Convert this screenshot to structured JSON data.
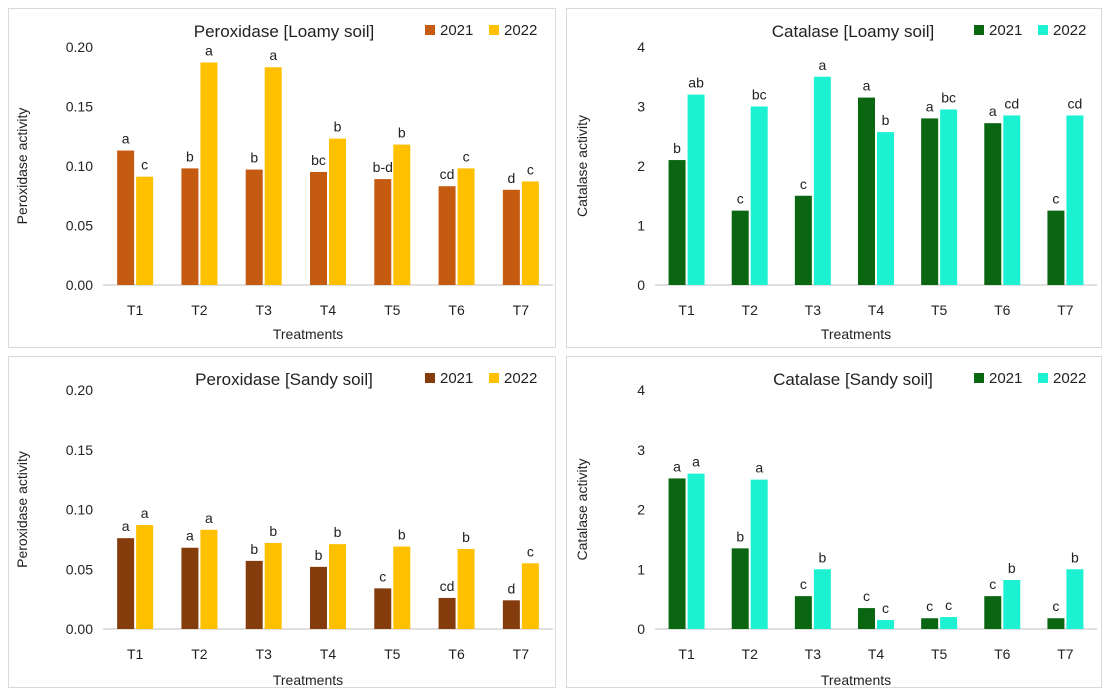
{
  "chart_data": [
    {
      "type": "bar",
      "title": "Peroxidase [Loamy soil]",
      "xlabel": "Treatments",
      "ylabel": "Peroxidase activity",
      "ylim": [
        0,
        0.2
      ],
      "yticks": [
        "0.00",
        "0.05",
        "0.10",
        "0.15",
        "0.20"
      ],
      "categories": [
        "T1",
        "T2",
        "T3",
        "T4",
        "T5",
        "T6",
        "T7"
      ],
      "series": [
        {
          "name": "2021",
          "color": "#C55A11",
          "values": [
            0.113,
            0.098,
            0.097,
            0.095,
            0.089,
            0.083,
            0.08
          ],
          "labels": [
            "a",
            "b",
            "b",
            "bc",
            "b-d",
            "cd",
            "d"
          ]
        },
        {
          "name": "2022",
          "color": "#FFC000",
          "values": [
            0.091,
            0.187,
            0.183,
            0.123,
            0.118,
            0.098,
            0.087
          ],
          "labels": [
            "c",
            "a",
            "a",
            "b",
            "b",
            "c",
            "c"
          ]
        }
      ],
      "legend": "top-right"
    },
    {
      "type": "bar",
      "title": "Catalase [Loamy soil]",
      "xlabel": "Treatments",
      "ylabel": "Catalase activity",
      "ylim": [
        0,
        4
      ],
      "yticks": [
        "0",
        "1",
        "2",
        "3",
        "4"
      ],
      "categories": [
        "T1",
        "T2",
        "T3",
        "T4",
        "T5",
        "T6",
        "T7"
      ],
      "series": [
        {
          "name": "2021",
          "color": "#0B6612",
          "values": [
            2.1,
            1.25,
            1.5,
            3.15,
            2.8,
            2.72,
            1.25
          ],
          "labels": [
            "b",
            "c",
            "c",
            "a",
            "a",
            "a",
            "c"
          ]
        },
        {
          "name": "2022",
          "color": "#1CF2D2",
          "values": [
            3.2,
            3.0,
            3.5,
            2.57,
            2.95,
            2.85,
            2.85
          ],
          "labels": [
            "ab",
            "bc",
            "a",
            "b",
            "bc",
            "cd",
            "cd"
          ]
        }
      ],
      "legend": "top-right"
    },
    {
      "type": "bar",
      "title": "Peroxidase [Sandy soil]",
      "xlabel": "Treatments",
      "ylabel": "Peroxidase activity",
      "ylim": [
        0,
        0.2
      ],
      "yticks": [
        "0.00",
        "0.05",
        "0.10",
        "0.15",
        "0.20"
      ],
      "categories": [
        "T1",
        "T2",
        "T3",
        "T4",
        "T5",
        "T6",
        "T7"
      ],
      "series": [
        {
          "name": "2021",
          "color": "#843C0C",
          "values": [
            0.076,
            0.068,
            0.057,
            0.052,
            0.034,
            0.026,
            0.024
          ],
          "labels": [
            "a",
            "a",
            "b",
            "b",
            "c",
            "cd",
            "d"
          ]
        },
        {
          "name": "2022",
          "color": "#FFC000",
          "values": [
            0.087,
            0.083,
            0.072,
            0.071,
            0.069,
            0.067,
            0.055
          ],
          "labels": [
            "a",
            "a",
            "b",
            "b",
            "b",
            "b",
            "c"
          ]
        }
      ],
      "legend": "top-right"
    },
    {
      "type": "bar",
      "title": "Catalase [Sandy soil]",
      "xlabel": "Treatments",
      "ylabel": "Catalase activity",
      "ylim": [
        0,
        4
      ],
      "yticks": [
        "0",
        "1",
        "2",
        "3",
        "4"
      ],
      "categories": [
        "T1",
        "T2",
        "T3",
        "T4",
        "T5",
        "T6",
        "T7"
      ],
      "series": [
        {
          "name": "2021",
          "color": "#0B6612",
          "values": [
            2.52,
            1.35,
            0.55,
            0.35,
            0.18,
            0.55,
            0.18
          ],
          "labels": [
            "a",
            "b",
            "c",
            "c",
            "c",
            "c",
            "c"
          ]
        },
        {
          "name": "2022",
          "color": "#1CF2D2",
          "values": [
            2.6,
            2.5,
            1.0,
            0.15,
            0.2,
            0.82,
            1.0
          ],
          "labels": [
            "a",
            "a",
            "b",
            "c",
            "c",
            "b",
            "b"
          ]
        }
      ],
      "legend": "top-right"
    }
  ]
}
